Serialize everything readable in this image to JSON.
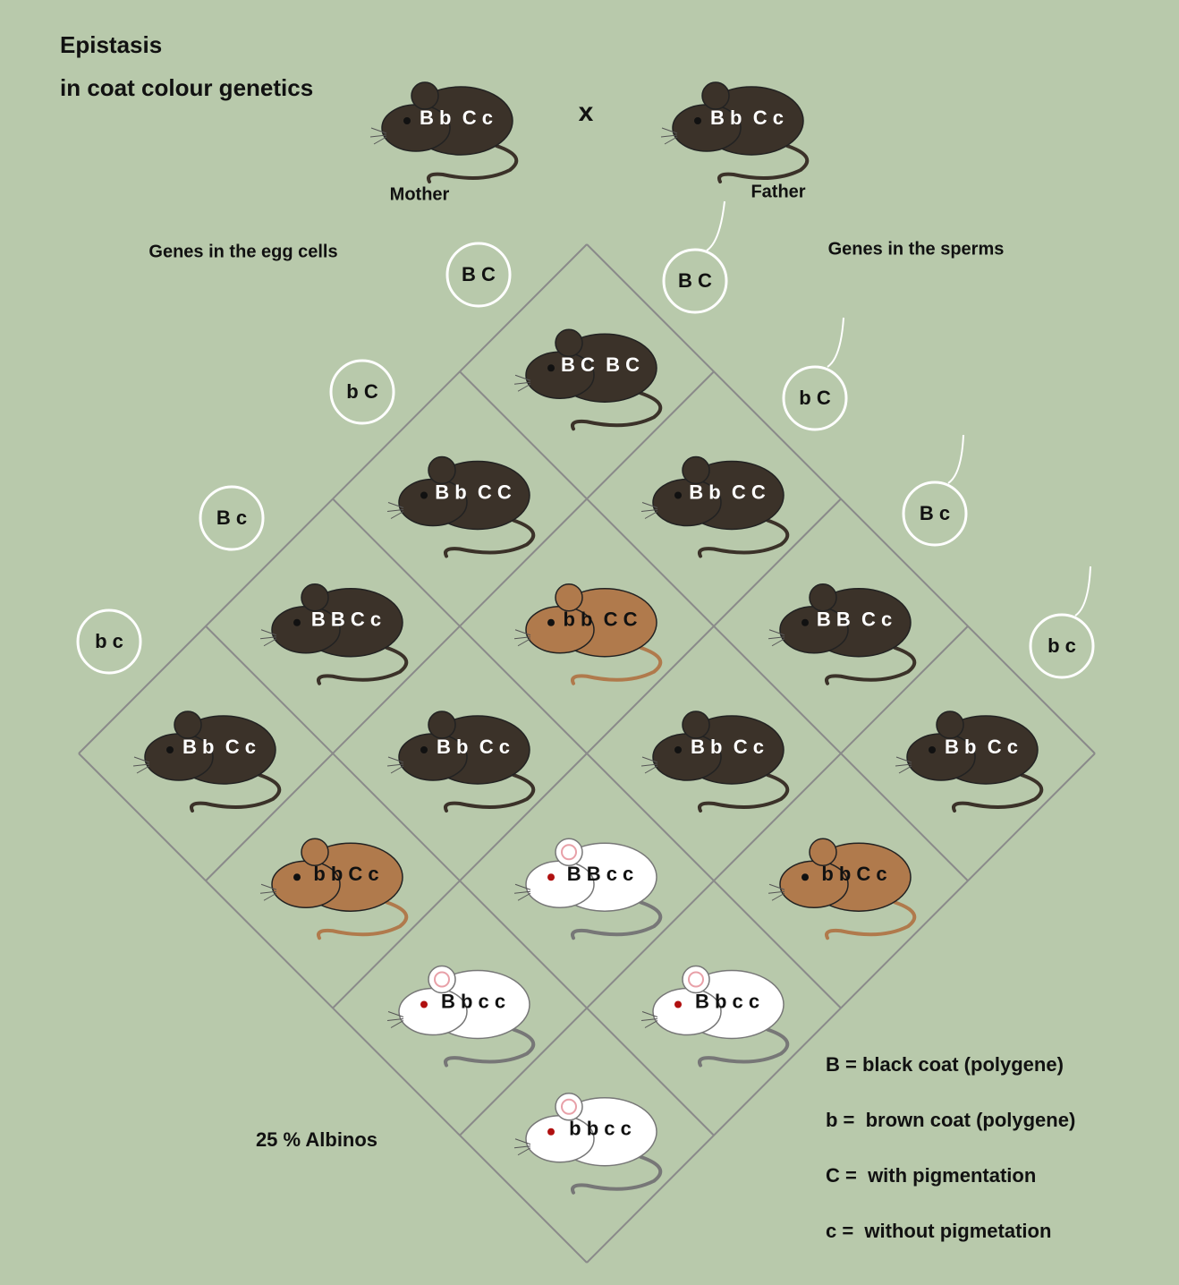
{
  "header": {
    "title": "Epistasis",
    "subtitle": "in coat colour genetics"
  },
  "parents": {
    "cross": "x",
    "mother": {
      "label": "Mother",
      "genotype": "B b  C c",
      "color": "#3b3229"
    },
    "father": {
      "label": "Father",
      "genotype": "B b  C c",
      "color": "#3b3229"
    }
  },
  "egg_label": "Genes in the egg cells",
  "sperm_label": "Genes in the sperms",
  "eggs": [
    "B C",
    "b C",
    "B c",
    "b c"
  ],
  "sperms": [
    "B C",
    "b C",
    "B c",
    "b c"
  ],
  "cells": [
    [
      {
        "genotype": "B C  B C",
        "color": "#3b3229"
      },
      {
        "genotype": "B b  C C",
        "color": "#3b3229"
      },
      {
        "genotype": "B B  C c",
        "color": "#3b3229"
      },
      {
        "genotype": "B b  C c",
        "color": "#3b3229"
      }
    ],
    [
      {
        "genotype": "B b  C C",
        "color": "#3b3229"
      },
      {
        "genotype": "b b  C C",
        "color": "#b07a4c"
      },
      {
        "genotype": "B b  C c",
        "color": "#3b3229"
      },
      {
        "genotype": "b b C c",
        "color": "#b07a4c"
      }
    ],
    [
      {
        "genotype": "B B C c",
        "color": "#3b3229"
      },
      {
        "genotype": "B b  C c",
        "color": "#3b3229"
      },
      {
        "genotype": "B B c c",
        "color": "#ffffff"
      },
      {
        "genotype": "B b c c",
        "color": "#ffffff"
      }
    ],
    [
      {
        "genotype": "B b  C c",
        "color": "#3b3229"
      },
      {
        "genotype": "b b C c",
        "color": "#b07a4c"
      },
      {
        "genotype": "B b c c",
        "color": "#ffffff"
      },
      {
        "genotype": "b b c c",
        "color": "#ffffff"
      }
    ]
  ],
  "albino_note": "25 % Albinos",
  "legend": [
    "B = black coat (polygene)",
    "b =  brown coat (polygene)",
    "C =  with pigmentation",
    "c =  without pigmetation"
  ]
}
